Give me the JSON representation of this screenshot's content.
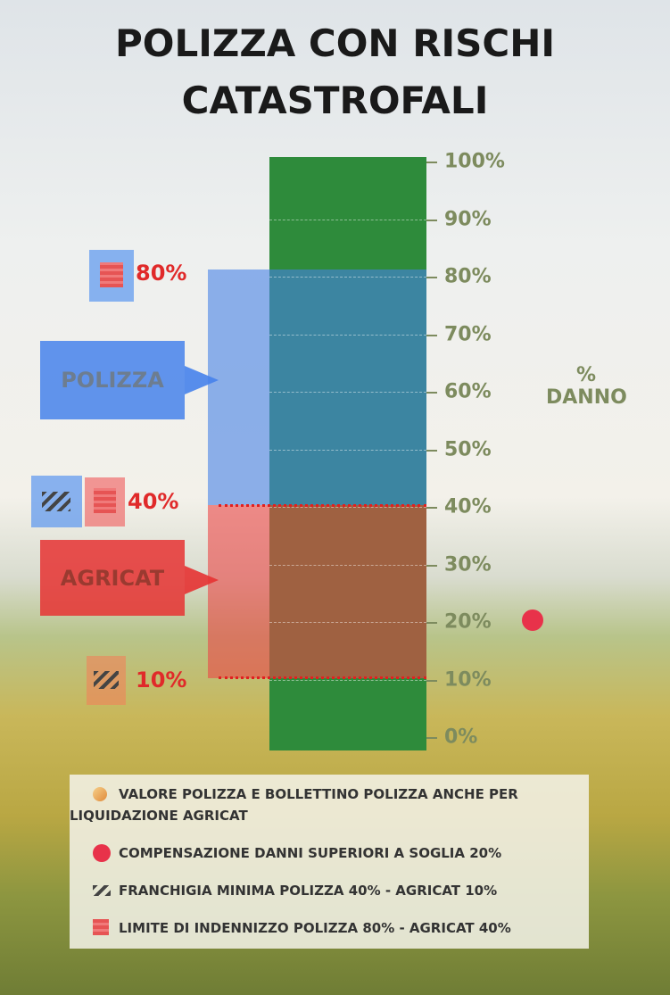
{
  "title": [
    "POLIZZA CON RISCHI",
    "CATASTROFALI"
  ],
  "scale": {
    "ticks": [
      "100%",
      "90%",
      "80%",
      "70%",
      "60%",
      "50%",
      "40%",
      "30%",
      "20%",
      "10%",
      "0%"
    ],
    "axis_label": [
      "%",
      "DANNO"
    ]
  },
  "markers": {
    "upper": "80%",
    "middle": "40%",
    "lower": "10%"
  },
  "boxes": {
    "polizza": "POLIZZA",
    "agricat": "AGRICAT"
  },
  "legend": [
    "VALORE POLIZZA E BOLLETTINO POLIZZA ANCHE PER LIQUIDAZIONE AGRICAT",
    "COMPENSAZIONE DANNI SUPERIORI A SOGLIA 20%",
    "FRANCHIGIA MINIMA POLIZZA 40% - AGRICAT 10%",
    "LIMITE DI INDENNIZZO POLIZZA 80% - AGRICAT 40%"
  ]
}
